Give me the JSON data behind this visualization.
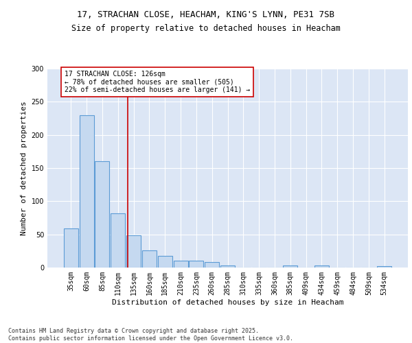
{
  "title_line1": "17, STRACHAN CLOSE, HEACHAM, KING'S LYNN, PE31 7SB",
  "title_line2": "Size of property relative to detached houses in Heacham",
  "xlabel": "Distribution of detached houses by size in Heacham",
  "ylabel": "Number of detached properties",
  "categories": [
    "35sqm",
    "60sqm",
    "85sqm",
    "110sqm",
    "135sqm",
    "160sqm",
    "185sqm",
    "210sqm",
    "235sqm",
    "260sqm",
    "285sqm",
    "310sqm",
    "335sqm",
    "360sqm",
    "385sqm",
    "409sqm",
    "434sqm",
    "459sqm",
    "484sqm",
    "509sqm",
    "534sqm"
  ],
  "values": [
    59,
    230,
    160,
    82,
    49,
    26,
    18,
    10,
    10,
    8,
    3,
    0,
    0,
    0,
    3,
    0,
    3,
    0,
    0,
    0,
    2
  ],
  "bar_color": "#c5d9f0",
  "bar_edge_color": "#5b9bd5",
  "bar_linewidth": 0.8,
  "ref_line_x": 3.64,
  "ref_line_color": "#cc0000",
  "annotation_text": "17 STRACHAN CLOSE: 126sqm\n← 78% of detached houses are smaller (505)\n22% of semi-detached houses are larger (141) →",
  "annotation_box_color": "#cc0000",
  "ylim": [
    0,
    300
  ],
  "yticks": [
    0,
    50,
    100,
    150,
    200,
    250,
    300
  ],
  "background_color": "#dce6f5",
  "grid_color": "#ffffff",
  "footnote": "Contains HM Land Registry data © Crown copyright and database right 2025.\nContains public sector information licensed under the Open Government Licence v3.0.",
  "title_fontsize": 9,
  "subtitle_fontsize": 8.5,
  "xlabel_fontsize": 8,
  "ylabel_fontsize": 8,
  "tick_fontsize": 7,
  "annotation_fontsize": 7,
  "footnote_fontsize": 6
}
